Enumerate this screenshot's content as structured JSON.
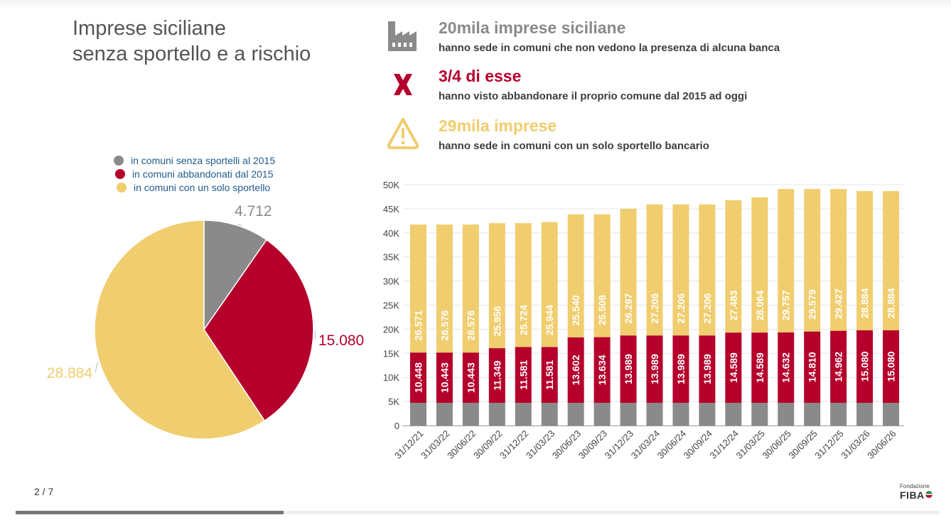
{
  "slide": {
    "title_line1": "Imprese siciliane",
    "title_line2": "senza sportello e a rischio",
    "page_indicator": "2 / 7",
    "progress": 0.29
  },
  "stats": [
    {
      "icon": "factory-icon",
      "headline": "20mila imprese siciliane",
      "text": "hanno sede in comuni che non vedono la presenza di alcuna banca",
      "color": "#8a8a8a"
    },
    {
      "icon": "cross-icon",
      "headline": "3/4 di esse",
      "text": "hanno visto abbandonare il proprio comune dal 2015 ad oggi",
      "color": "#b5002c"
    },
    {
      "icon": "warning-icon",
      "headline": "29mila imprese",
      "text": "hanno sede in comuni con un solo sportello bancario",
      "color": "#f0cd6e"
    }
  ],
  "logo": {
    "small": "Fondazione",
    "big": "FIBA"
  },
  "colors": {
    "gray": "#8a8a8a",
    "red": "#b5002c",
    "yellow": "#f0cd6e"
  },
  "chart_data": [
    {
      "type": "pie",
      "legend": {
        "placement": "top",
        "entries": [
          "in comuni senza sportelli al 2015",
          "in comuni abbandonati dal 2015",
          "in comuni con un solo sportello"
        ]
      },
      "slices": [
        {
          "label": "in comuni senza sportelli al 2015",
          "value": 4712,
          "display": "4.712",
          "color": "#8a8a8a"
        },
        {
          "label": "in comuni abbandonati dal 2015",
          "value": 15080,
          "display": "15.080",
          "color": "#b5002c"
        },
        {
          "label": "in comuni con un solo sportello",
          "value": 28884,
          "display": "28.884",
          "color": "#f0cd6e"
        }
      ]
    },
    {
      "type": "bar",
      "stacked": true,
      "categories": [
        "31/12/21",
        "31/03/22",
        "30/06/22",
        "30/09/22",
        "31/12/22",
        "31/03/23",
        "30/06/23",
        "30/09/23",
        "31/12/23",
        "31/03/24",
        "30/06/24",
        "30/09/24",
        "31/12/24",
        "31/03/25",
        "30/06/25",
        "30/09/25",
        "31/12/25",
        "31/03/26",
        "30/06/26"
      ],
      "yticks": [
        "0",
        "5K",
        "10K",
        "15K",
        "20K",
        "25K",
        "30K",
        "35K",
        "40K",
        "45K",
        "50K"
      ],
      "ylim": [
        0,
        50000
      ],
      "grid": true,
      "series": [
        {
          "values": [
            4712,
            4712,
            4712,
            4712,
            4712,
            4712,
            4712,
            4712,
            4712,
            4712,
            4712,
            4712,
            4712,
            4712,
            4712,
            4712,
            4712,
            4712,
            4712
          ],
          "color": "#8a8a8a"
        },
        {
          "values": [
            10448,
            10443,
            10443,
            11349,
            11581,
            11581,
            13602,
            13634,
            13989,
            13989,
            13989,
            13989,
            14589,
            14589,
            14632,
            14810,
            14962,
            15080,
            15080
          ],
          "labels": [
            "10.448",
            "10.443",
            "10.443",
            "11.349",
            "11.581",
            "11.581",
            "13.602",
            "13.634",
            "13.989",
            "13.989",
            "13.989",
            "13.989",
            "14.589",
            "14.589",
            "14.632",
            "14.810",
            "14.962",
            "15.080",
            "15.080"
          ],
          "color": "#b5002c"
        },
        {
          "values": [
            26571,
            26576,
            26576,
            25956,
            25724,
            25944,
            25540,
            25508,
            26287,
            27206,
            27206,
            27206,
            27483,
            28064,
            29757,
            29579,
            29427,
            28884,
            28884
          ],
          "labels": [
            "26.571",
            "26.576",
            "26.576",
            "25.956",
            "25.724",
            "25.944",
            "25.540",
            "25.508",
            "26.287",
            "27.206",
            "27.206",
            "27.206",
            "27.483",
            "28.064",
            "29.757",
            "29.579",
            "29.427",
            "28.884",
            "28.884"
          ],
          "color": "#f0cd6e"
        }
      ]
    }
  ]
}
